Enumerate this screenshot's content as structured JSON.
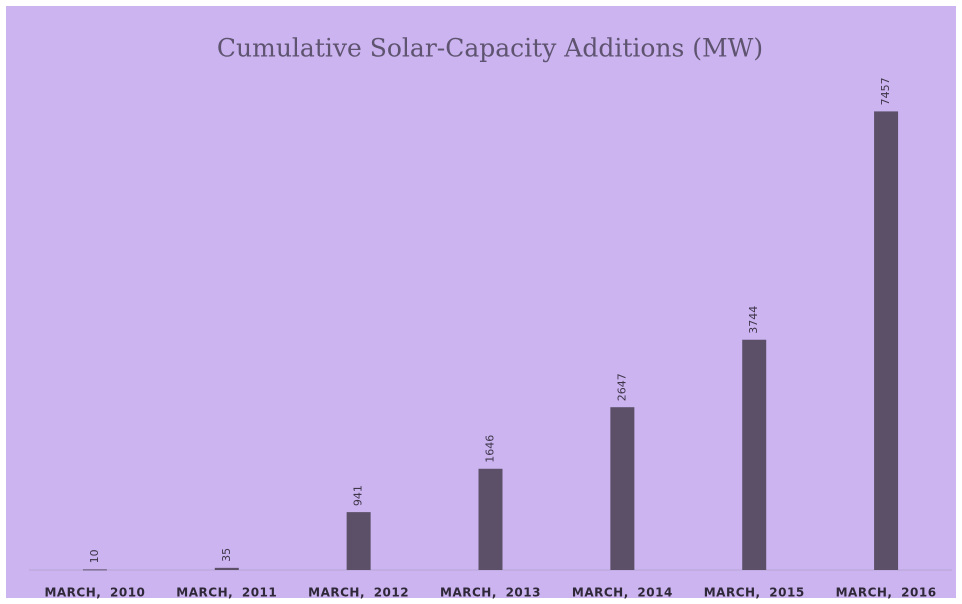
{
  "chart_data": {
    "type": "bar",
    "title": "Cumulative Solar-Capacity Additions (MW)",
    "categories": [
      "MARCH, 2010",
      "MARCH, 2011",
      "MARCH, 2012",
      "MARCH, 2013",
      "MARCH, 2014",
      "MARCH, 2015",
      "MARCH, 2016"
    ],
    "values": [
      10,
      35,
      941,
      1646,
      2647,
      3744,
      7457
    ],
    "color": "#5b5068",
    "ylim": [
      0,
      8000
    ]
  }
}
